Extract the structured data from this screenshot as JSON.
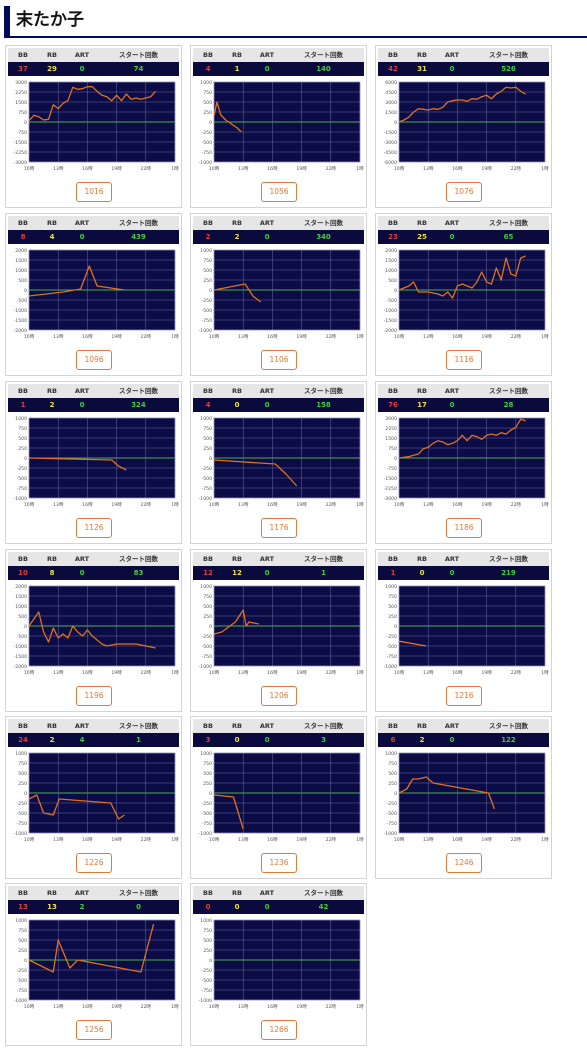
{
  "page": {
    "title": "末たか子"
  },
  "colors": {
    "bb": "#e43c3c",
    "rb": "#f0e23a",
    "art": "#3ad13a",
    "start": "#3ad13a",
    "line": "#e0701f",
    "zero": "#4caf50"
  },
  "headers": [
    "BB",
    "RB",
    "ART",
    "スタート回数"
  ],
  "x_ticks": [
    "10時",
    "13時",
    "16時",
    "19時",
    "22時",
    "1時"
  ],
  "chart_data": [
    {
      "type": "line",
      "machine": "1016",
      "bb": "37",
      "rb": "29",
      "art": "0",
      "start": "74",
      "y_ticks": [
        "3000",
        "2250",
        "1500",
        "750",
        "0",
        "-750",
        "-1500",
        "-2250",
        "-3000"
      ],
      "ylim": [
        -3000,
        3000
      ],
      "x": [
        10.0,
        10.5,
        11.0,
        11.5,
        12.0,
        12.5,
        13.0,
        13.5,
        14.0,
        14.5,
        15.0,
        15.5,
        16.0,
        16.5,
        17.0,
        17.5,
        18.0,
        18.5,
        19.0,
        19.5,
        20.0,
        20.5,
        21.0,
        21.5,
        22.0,
        22.5,
        23.0
      ],
      "y": [
        100,
        500,
        400,
        150,
        200,
        1300,
        1000,
        1400,
        1600,
        2600,
        2450,
        2500,
        2650,
        2650,
        2300,
        2000,
        1900,
        1600,
        2000,
        1600,
        2100,
        1700,
        1800,
        1700,
        1800,
        1900,
        2300
      ]
    },
    {
      "type": "line",
      "machine": "1056",
      "bb": "4",
      "rb": "1",
      "art": "0",
      "start": "140",
      "y_ticks": [
        "1000",
        "750",
        "500",
        "250",
        "0",
        "-250",
        "-500",
        "-750",
        "-1000"
      ],
      "ylim": [
        -1000,
        1000
      ],
      "x": [
        10.0,
        10.3,
        10.7,
        11.2,
        11.8,
        12.4,
        12.8
      ],
      "y": [
        150,
        500,
        180,
        50,
        -50,
        -150,
        -250
      ]
    },
    {
      "type": "line",
      "machine": "1076",
      "bb": "42",
      "rb": "31",
      "art": "0",
      "start": "526",
      "y_ticks": [
        "6000",
        "4500",
        "3000",
        "1500",
        "0",
        "-1500",
        "-3000",
        "-4500",
        "-6000"
      ],
      "ylim": [
        -6000,
        6000
      ],
      "x": [
        10.0,
        10.5,
        11.0,
        11.5,
        12.0,
        12.5,
        13.0,
        13.5,
        14.0,
        14.5,
        15.0,
        15.5,
        16.0,
        16.5,
        17.0,
        17.5,
        18.0,
        18.5,
        19.0,
        19.5,
        20.0,
        20.5,
        21.0,
        21.5,
        22.0,
        22.5,
        23.0
      ],
      "y": [
        0,
        300,
        700,
        1500,
        2000,
        1900,
        1800,
        2000,
        1900,
        2200,
        3000,
        3200,
        3300,
        3300,
        3100,
        3500,
        3400,
        3800,
        4000,
        3500,
        4200,
        4600,
        5200,
        5100,
        5200,
        4600,
        4200
      ]
    },
    {
      "type": "line",
      "machine": "1096",
      "bb": "8",
      "rb": "4",
      "art": "0",
      "start": "439",
      "y_ticks": [
        "2000",
        "1500",
        "1000",
        "500",
        "0",
        "-500",
        "-1000",
        "-1500",
        "-2000"
      ],
      "ylim": [
        -2000,
        2000
      ],
      "x": [
        10.0,
        13.5,
        15.3,
        16.2,
        17.0,
        19.8
      ],
      "y": [
        -300,
        -100,
        50,
        1200,
        200,
        0
      ]
    },
    {
      "type": "line",
      "machine": "1106",
      "bb": "2",
      "rb": "2",
      "art": "0",
      "start": "340",
      "y_ticks": [
        "1000",
        "750",
        "500",
        "250",
        "0",
        "-250",
        "-500",
        "-750",
        "-1000"
      ],
      "ylim": [
        -1000,
        1000
      ],
      "x": [
        10.0,
        13.2,
        14.0,
        14.8
      ],
      "y": [
        0,
        150,
        -150,
        -300
      ]
    },
    {
      "type": "line",
      "machine": "1116",
      "bb": "23",
      "rb": "25",
      "art": "0",
      "start": "65",
      "y_ticks": [
        "2000",
        "1500",
        "1000",
        "500",
        "0",
        "-500",
        "-1000",
        "-1500",
        "-2000"
      ],
      "ylim": [
        -2000,
        2000
      ],
      "x": [
        10.0,
        11.0,
        11.5,
        12.0,
        13.0,
        14.0,
        14.5,
        15.0,
        15.5,
        16.0,
        16.5,
        17.0,
        17.5,
        18.0,
        18.5,
        19.0,
        19.5,
        20.0,
        20.5,
        21.0,
        21.5,
        22.0,
        22.5,
        23.0
      ],
      "y": [
        0,
        200,
        400,
        -100,
        -100,
        -200,
        -300,
        -100,
        -400,
        200,
        300,
        200,
        100,
        400,
        900,
        400,
        300,
        1100,
        500,
        1600,
        800,
        700,
        1600,
        1700
      ]
    },
    {
      "type": "line",
      "machine": "1126",
      "bb": "1",
      "rb": "2",
      "art": "0",
      "start": "324",
      "y_ticks": [
        "1000",
        "750",
        "500",
        "250",
        "0",
        "-250",
        "-500",
        "-750",
        "-1000"
      ],
      "ylim": [
        -1000,
        1000
      ],
      "x": [
        10.0,
        18.5,
        19.2,
        20.0
      ],
      "y": [
        0,
        -50,
        -200,
        -300
      ]
    },
    {
      "type": "line",
      "machine": "1176",
      "bb": "4",
      "rb": "0",
      "art": "0",
      "start": "158",
      "y_ticks": [
        "1000",
        "750",
        "500",
        "250",
        "0",
        "-250",
        "-500",
        "-750",
        "-1000"
      ],
      "ylim": [
        -1000,
        1000
      ],
      "x": [
        10.0,
        16.3,
        17.4,
        18.5
      ],
      "y": [
        -50,
        -150,
        -400,
        -700
      ]
    },
    {
      "type": "line",
      "machine": "1186",
      "bb": "76",
      "rb": "17",
      "art": "0",
      "start": "28",
      "y_ticks": [
        "3000",
        "2250",
        "1500",
        "750",
        "0",
        "-750",
        "-1500",
        "-2250",
        "-3000"
      ],
      "ylim": [
        -3000,
        3000
      ],
      "x": [
        10.0,
        11.0,
        11.5,
        12.0,
        12.5,
        13.0,
        13.5,
        14.0,
        14.5,
        15.0,
        15.5,
        16.0,
        16.5,
        17.0,
        17.5,
        18.0,
        18.5,
        19.0,
        19.5,
        20.0,
        20.5,
        21.0,
        21.5,
        22.0,
        22.5,
        23.0
      ],
      "y": [
        0,
        100,
        200,
        300,
        700,
        800,
        1100,
        1300,
        1200,
        1000,
        1100,
        1300,
        1700,
        1300,
        1700,
        1600,
        1400,
        1700,
        1800,
        1700,
        1900,
        1800,
        2100,
        2300,
        2900,
        2800
      ]
    },
    {
      "type": "line",
      "machine": "1196",
      "bb": "10",
      "rb": "8",
      "art": "0",
      "start": "83",
      "y_ticks": [
        "2000",
        "1500",
        "1000",
        "500",
        "0",
        "-500",
        "-1000",
        "-1500",
        "-2000"
      ],
      "ylim": [
        -2000,
        2000
      ],
      "x": [
        10.0,
        11.0,
        11.5,
        12.0,
        12.5,
        13.0,
        13.5,
        14.0,
        14.5,
        15.0,
        15.5,
        16.0,
        16.5,
        17.0,
        17.5,
        18.0,
        19.0,
        20.0,
        21.0,
        22.0,
        23.0
      ],
      "y": [
        0,
        700,
        -300,
        -800,
        -100,
        -600,
        -400,
        -600,
        0,
        -300,
        -500,
        -200,
        -500,
        -700,
        -900,
        -1000,
        -900,
        -900,
        -900,
        -1000,
        -1100
      ]
    },
    {
      "type": "line",
      "machine": "1206",
      "bb": "12",
      "rb": "12",
      "art": "0",
      "start": "1",
      "y_ticks": [
        "1000",
        "750",
        "500",
        "250",
        "0",
        "-250",
        "-500",
        "-750",
        "-1000"
      ],
      "ylim": [
        -1000,
        1000
      ],
      "x": [
        10.0,
        10.8,
        12.2,
        13.0,
        13.3,
        13.6,
        14.6
      ],
      "y": [
        -200,
        -150,
        100,
        400,
        0,
        100,
        50
      ]
    },
    {
      "type": "line",
      "machine": "1216",
      "bb": "1",
      "rb": "0",
      "art": "0",
      "start": "219",
      "y_ticks": [
        "1000",
        "750",
        "500",
        "250",
        "0",
        "-250",
        "-500",
        "-750",
        "-1000"
      ],
      "ylim": [
        -1000,
        1000
      ],
      "x": [
        10.0,
        12.8
      ],
      "y": [
        -380,
        -500
      ]
    },
    {
      "type": "line",
      "machine": "1226",
      "bb": "24",
      "rb": "2",
      "art": "4",
      "start": "1",
      "y_ticks": [
        "1000",
        "750",
        "500",
        "250",
        "0",
        "-250",
        "-500",
        "-750",
        "-1000"
      ],
      "ylim": [
        -1000,
        1000
      ],
      "x": [
        10.0,
        10.8,
        11.5,
        12.5,
        13.1,
        18.4,
        19.2,
        19.8
      ],
      "y": [
        -150,
        -50,
        -500,
        -550,
        -150,
        -250,
        -650,
        -550
      ]
    },
    {
      "type": "line",
      "machine": "1236",
      "bb": "3",
      "rb": "0",
      "art": "0",
      "start": "3",
      "y_ticks": [
        "1000",
        "750",
        "500",
        "250",
        "0",
        "-250",
        "-500",
        "-750",
        "-1000"
      ],
      "ylim": [
        -1000,
        1000
      ],
      "x": [
        10.0,
        12.0,
        13.0
      ],
      "y": [
        -50,
        -100,
        -900
      ]
    },
    {
      "type": "line",
      "machine": "1246",
      "bb": "6",
      "rb": "2",
      "art": "0",
      "start": "122",
      "y_ticks": [
        "1000",
        "750",
        "500",
        "250",
        "0",
        "-250",
        "-500",
        "-750",
        "-1000"
      ],
      "ylim": [
        -1000,
        1000
      ],
      "x": [
        10.0,
        10.8,
        11.4,
        12.0,
        12.8,
        13.5,
        19.2,
        19.8
      ],
      "y": [
        0,
        100,
        350,
        350,
        400,
        250,
        0,
        -400
      ]
    },
    {
      "type": "line",
      "machine": "1256",
      "bb": "13",
      "rb": "13",
      "art": "2",
      "start": "0",
      "y_ticks": [
        "1000",
        "750",
        "500",
        "250",
        "0",
        "-250",
        "-500",
        "-750",
        "-1000"
      ],
      "ylim": [
        -1000,
        1000
      ],
      "x": [
        10.0,
        12.5,
        13.0,
        14.2,
        15.0,
        21.5,
        22.8
      ],
      "y": [
        0,
        -300,
        500,
        -200,
        0,
        -300,
        900
      ]
    },
    {
      "type": "line",
      "machine": "1266",
      "bb": "0",
      "rb": "0",
      "art": "0",
      "start": "42",
      "y_ticks": [
        "1000",
        "750",
        "500",
        "250",
        "0",
        "-250",
        "-500",
        "-750",
        "-1000"
      ],
      "ylim": [
        -1000,
        1000
      ],
      "x": [],
      "y": []
    }
  ]
}
